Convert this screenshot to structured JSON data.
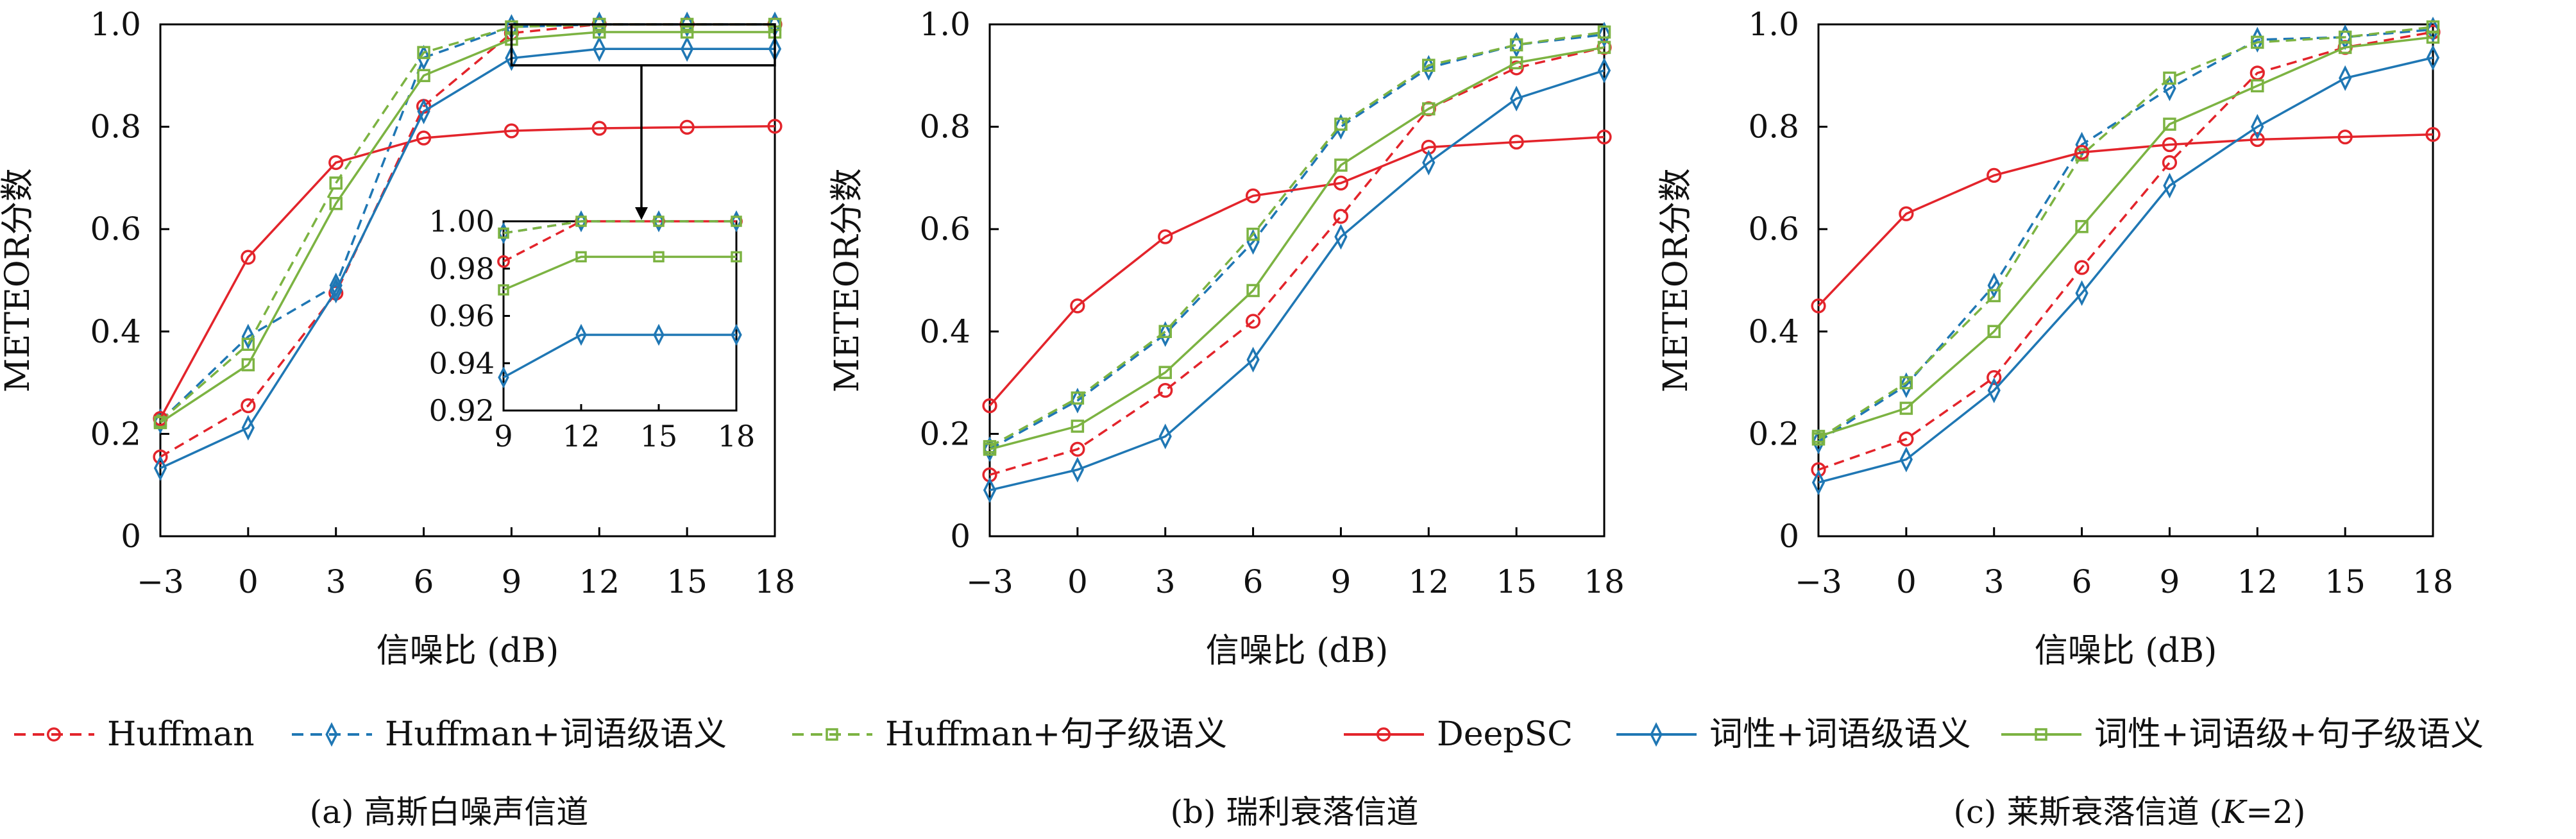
{
  "chart_data": [
    {
      "type": "line",
      "caption": "(a) 高斯白噪声信道",
      "xlabel": "信噪比 (dB)",
      "ylabel": "METEOR分数",
      "x": [
        -3,
        0,
        3,
        6,
        9,
        12,
        15,
        18
      ],
      "xticks": [
        "−3",
        "0",
        "3",
        "6",
        "9",
        "12",
        "15",
        "18"
      ],
      "ylim": [
        0,
        1.0
      ],
      "yticks": [
        "0",
        "0.2",
        "0.4",
        "0.6",
        "0.8",
        "1.0"
      ],
      "series": [
        {
          "name": "Huffman",
          "values": [
            0.155,
            0.255,
            0.475,
            0.84,
            0.983,
            1.0,
            1.0,
            1.0
          ]
        },
        {
          "name": "Huffman+词语级语义",
          "values": [
            0.225,
            0.39,
            0.49,
            0.935,
            0.995,
            1.0,
            1.0,
            1.0
          ]
        },
        {
          "name": "Huffman+句子级语义",
          "values": [
            0.225,
            0.375,
            0.69,
            0.945,
            0.995,
            1.0,
            1.0,
            1.0
          ]
        },
        {
          "name": "DeepSC",
          "values": [
            0.23,
            0.545,
            0.73,
            0.778,
            0.792,
            0.797,
            0.799,
            0.801
          ]
        },
        {
          "name": "词性+词语级语义",
          "values": [
            0.133,
            0.212,
            0.48,
            0.83,
            0.934,
            0.952,
            0.952,
            0.952
          ]
        },
        {
          "name": "词性+词语级+句子级语义",
          "values": [
            0.222,
            0.335,
            0.65,
            0.9,
            0.971,
            0.985,
            0.985,
            0.985
          ]
        }
      ],
      "inset": {
        "x": [
          9,
          12,
          15,
          18
        ],
        "xticks": [
          "9",
          "12",
          "15",
          "18"
        ],
        "ylim": [
          0.92,
          1.0
        ],
        "yticks": [
          "0.92",
          "0.94",
          "0.96",
          "0.98",
          "1.00"
        ]
      }
    },
    {
      "type": "line",
      "caption": "(b) 瑞利衰落信道",
      "xlabel": "信噪比 (dB)",
      "ylabel": "METEOR分数",
      "x": [
        -3,
        0,
        3,
        6,
        9,
        12,
        15,
        18
      ],
      "xticks": [
        "−3",
        "0",
        "3",
        "6",
        "9",
        "12",
        "15",
        "18"
      ],
      "ylim": [
        0,
        1.0
      ],
      "yticks": [
        "0",
        "0.2",
        "0.4",
        "0.6",
        "0.8",
        "1.0"
      ],
      "series": [
        {
          "name": "Huffman",
          "values": [
            0.12,
            0.17,
            0.285,
            0.42,
            0.625,
            0.835,
            0.915,
            0.955
          ]
        },
        {
          "name": "Huffman+词语级语义",
          "values": [
            0.17,
            0.265,
            0.395,
            0.575,
            0.8,
            0.915,
            0.96,
            0.98
          ]
        },
        {
          "name": "Huffman+句子级语义",
          "values": [
            0.175,
            0.27,
            0.4,
            0.59,
            0.805,
            0.92,
            0.96,
            0.985
          ]
        },
        {
          "name": "DeepSC",
          "values": [
            0.255,
            0.45,
            0.585,
            0.665,
            0.69,
            0.76,
            0.77,
            0.78
          ]
        },
        {
          "name": "词性+词语级语义",
          "values": [
            0.09,
            0.13,
            0.195,
            0.345,
            0.585,
            0.73,
            0.855,
            0.91
          ]
        },
        {
          "name": "词性+词语级+句子级语义",
          "values": [
            0.17,
            0.215,
            0.32,
            0.48,
            0.725,
            0.835,
            0.925,
            0.955
          ]
        }
      ]
    },
    {
      "type": "line",
      "caption": "(c) 莱斯衰落信道 (",
      "caption_k": "K",
      "caption_tail": "=2)",
      "xlabel": "信噪比 (dB)",
      "ylabel": "METEOR分数",
      "x": [
        -3,
        0,
        3,
        6,
        9,
        12,
        15,
        18
      ],
      "xticks": [
        "−3",
        "0",
        "3",
        "6",
        "9",
        "12",
        "15",
        "18"
      ],
      "ylim": [
        0,
        1.0
      ],
      "yticks": [
        "0",
        "0.2",
        "0.4",
        "0.6",
        "0.8",
        "1.0"
      ],
      "series": [
        {
          "name": "Huffman",
          "values": [
            0.13,
            0.19,
            0.31,
            0.525,
            0.73,
            0.905,
            0.955,
            0.985
          ]
        },
        {
          "name": "Huffman+词语级语义",
          "values": [
            0.185,
            0.295,
            0.49,
            0.765,
            0.875,
            0.97,
            0.975,
            0.99
          ]
        },
        {
          "name": "Huffman+句子级语义",
          "values": [
            0.19,
            0.3,
            0.47,
            0.745,
            0.895,
            0.965,
            0.975,
            0.995
          ]
        },
        {
          "name": "DeepSC",
          "values": [
            0.45,
            0.63,
            0.705,
            0.75,
            0.765,
            0.775,
            0.78,
            0.785
          ]
        },
        {
          "name": "词性+词语级语义",
          "values": [
            0.105,
            0.15,
            0.285,
            0.475,
            0.685,
            0.8,
            0.895,
            0.935
          ]
        },
        {
          "name": "词性+词语级+句子级语义",
          "values": [
            0.195,
            0.25,
            0.4,
            0.605,
            0.805,
            0.88,
            0.955,
            0.975
          ]
        }
      ]
    }
  ],
  "legend": {
    "placement": "bottom",
    "items": [
      {
        "label": "Huffman",
        "color": "#e3242b",
        "dashed": true,
        "marker": "circle"
      },
      {
        "label": "Huffman+词语级语义",
        "color": "#1f77b4",
        "dashed": true,
        "marker": "diamond"
      },
      {
        "label": "Huffman+句子级语义",
        "color": "#7cb342",
        "dashed": true,
        "marker": "square"
      },
      {
        "label": "DeepSC",
        "color": "#e3242b",
        "dashed": false,
        "marker": "circle"
      },
      {
        "label": "词性+词语级语义",
        "color": "#1f77b4",
        "dashed": false,
        "marker": "diamond"
      },
      {
        "label": "词性+词语级+句子级语义",
        "color": "#7cb342",
        "dashed": false,
        "marker": "square"
      }
    ]
  }
}
